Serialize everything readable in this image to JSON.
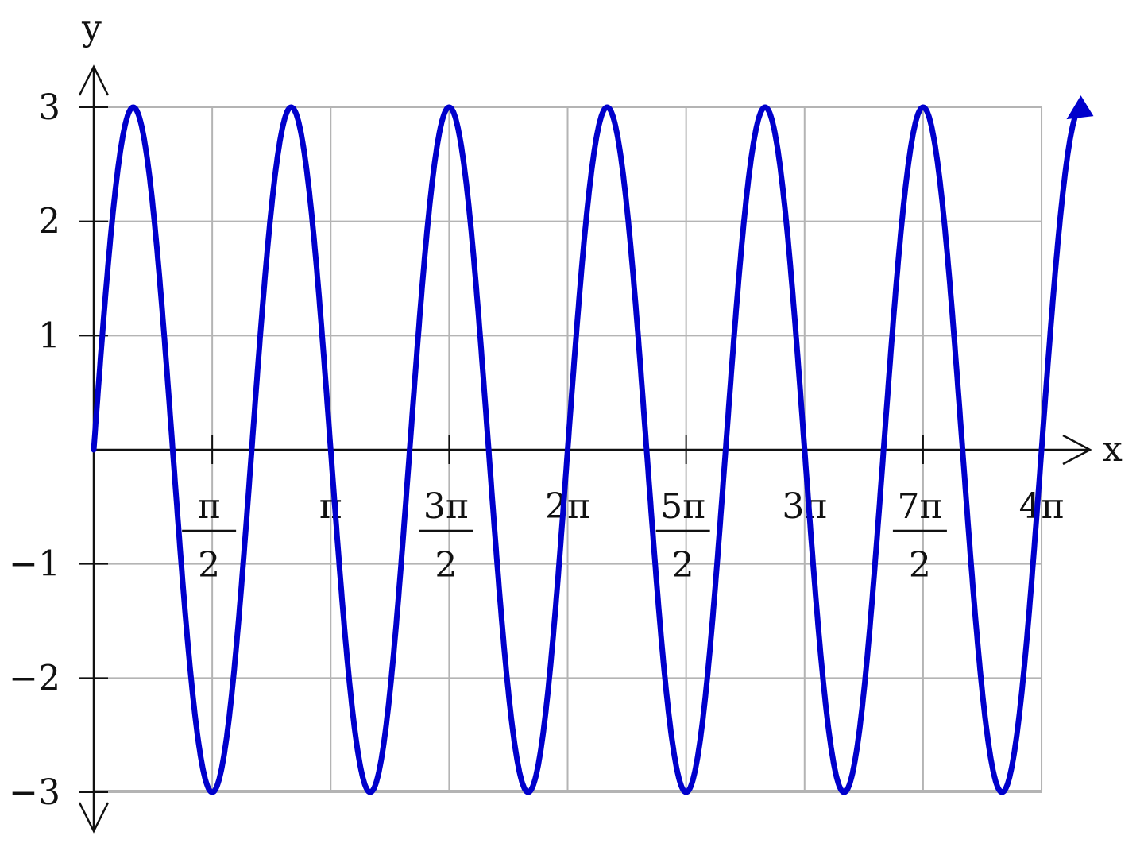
{
  "chart_data": {
    "type": "line",
    "function_samples": "y = 3 sin(3x), x from 0 to 4π",
    "title": "",
    "xlabel": "x",
    "ylabel": "y",
    "xlim": [
      0,
      12.566
    ],
    "ylim": [
      -3,
      3
    ],
    "grid": true,
    "x_ticks": [
      {
        "value": 1.5708,
        "num": "π",
        "den": "2"
      },
      {
        "value": 3.1416,
        "label": "π"
      },
      {
        "value": 4.7124,
        "num": "3π",
        "den": "2"
      },
      {
        "value": 6.2832,
        "label": "2π"
      },
      {
        "value": 7.854,
        "num": "5π",
        "den": "2"
      },
      {
        "value": 9.4248,
        "label": "3π"
      },
      {
        "value": 10.9956,
        "num": "7π",
        "den": "2"
      },
      {
        "value": 12.5664,
        "label": "4π"
      }
    ],
    "y_ticks": [
      {
        "value": 3,
        "label": "3"
      },
      {
        "value": 2,
        "label": "2"
      },
      {
        "value": 1,
        "label": "1"
      },
      {
        "value": -1,
        "label": "−1"
      },
      {
        "value": -2,
        "label": "−2"
      },
      {
        "value": -3,
        "label": "−3"
      }
    ],
    "series": [
      {
        "color": "#0000cc",
        "amplitude": 3,
        "frequency": 3,
        "x": [
          0,
          0.5236,
          1.0472,
          1.5708,
          2.0944,
          2.618,
          3.1416,
          3.6652,
          4.1888,
          4.7124,
          5.236,
          5.7596,
          6.2832,
          6.8068,
          7.3304,
          7.854,
          8.3776,
          8.9012,
          9.4248,
          9.9484,
          10.472,
          10.9956,
          11.5192,
          12.0428,
          12.5664
        ],
        "y": [
          0,
          3,
          0,
          -3,
          0,
          3,
          0,
          -3,
          0,
          3,
          0,
          -3,
          0,
          3,
          0,
          -3,
          0,
          3,
          0,
          -3,
          0,
          3,
          0,
          -3,
          0
        ]
      }
    ],
    "colors": {
      "curve": "#0000cc",
      "grid": "#b4b4b4",
      "axis": "#111111"
    }
  }
}
